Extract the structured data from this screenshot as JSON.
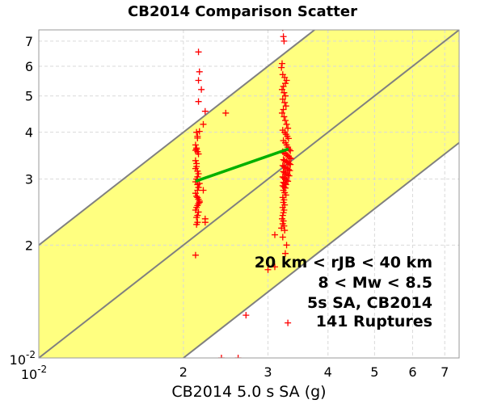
{
  "chart_data": {
    "type": "scatter",
    "title": "CB2014 Comparison Scatter",
    "xlabel": "CB2014 5.0 s SA (g)",
    "ylabel": "",
    "x_scale": "log",
    "y_scale": "log",
    "xlim": [
      0.01,
      0.075
    ],
    "ylim": [
      0.01,
      0.075
    ],
    "x_tick_labels": [
      {
        "value": 0.01,
        "base": "10",
        "exp": "-2"
      },
      {
        "value": 0.02,
        "label": "2"
      },
      {
        "value": 0.03,
        "label": "3"
      },
      {
        "value": 0.04,
        "label": "4"
      },
      {
        "value": 0.05,
        "label": "5"
      },
      {
        "value": 0.06,
        "label": "6"
      },
      {
        "value": 0.07,
        "label": "7"
      }
    ],
    "y_tick_labels": [
      {
        "value": 0.01,
        "base": "10",
        "exp": "-2"
      },
      {
        "value": 0.02,
        "label": "2"
      },
      {
        "value": 0.03,
        "label": "3"
      },
      {
        "value": 0.04,
        "label": "4"
      },
      {
        "value": 0.05,
        "label": "5"
      },
      {
        "value": 0.06,
        "label": "6"
      },
      {
        "value": 0.07,
        "label": "7"
      }
    ],
    "grid": true,
    "colors": {
      "band_fill": "#ffff80",
      "band_line": "#808080",
      "points": "#ff0000",
      "fit_line": "#00b000",
      "grid": "#d9d9d9"
    },
    "reference_lines": {
      "center": {
        "x": [
          0.01,
          0.075
        ],
        "y": [
          0.01,
          0.075
        ]
      },
      "upper": {
        "x": [
          0.01,
          0.0375
        ],
        "y": [
          0.02,
          0.075
        ]
      },
      "lower": {
        "x": [
          0.02,
          0.075
        ],
        "y": [
          0.01,
          0.0375
        ]
      }
    },
    "fit_line": {
      "x": [
        0.0212,
        0.0331
      ],
      "y": [
        0.0296,
        0.0361
      ]
    },
    "series": [
      {
        "x": [
          0.0215,
          0.0216,
          0.0215,
          0.0218,
          0.0222,
          0.022,
          0.0213,
          0.0214,
          0.0212,
          0.0213,
          0.0214,
          0.0215,
          0.0213,
          0.0212,
          0.0214,
          0.0215,
          0.0213,
          0.0212,
          0.0216,
          0.0214,
          0.0215,
          0.0214,
          0.0212,
          0.0213,
          0.0215,
          0.0216,
          0.0214,
          0.0213,
          0.0212,
          0.0215,
          0.0214,
          0.0213,
          0.022,
          0.0222,
          0.0215,
          0.0216,
          0.0214,
          0.0213,
          0.0212,
          0.0212,
          0.0213,
          0.0214,
          0.0215,
          0.0216,
          0.0214,
          0.0213,
          0.0222,
          0.0212,
          0.0215,
          0.0214
        ],
        "y": [
          0.0655,
          0.058,
          0.055,
          0.052,
          0.0455,
          0.042,
          0.04,
          0.039,
          0.037,
          0.036,
          0.0355,
          0.035,
          0.033,
          0.032,
          0.0315,
          0.031,
          0.03,
          0.0295,
          0.0292,
          0.029,
          0.0285,
          0.028,
          0.0275,
          0.027,
          0.0265,
          0.026,
          0.0255,
          0.0252,
          0.0248,
          0.0245,
          0.024,
          0.0237,
          0.028,
          0.0235,
          0.0483,
          0.0402,
          0.0386,
          0.0363,
          0.0358,
          0.0336,
          0.0324,
          0.0304,
          0.0285,
          0.0262,
          0.023,
          0.0227,
          0.023,
          0.0188,
          0.0258,
          0.0268
        ]
      },
      {
        "x": [
          0.0245,
          0.026,
          0.024,
          0.027,
          0.03,
          0.031,
          0.033
        ],
        "y": [
          0.045,
          0.01,
          0.01,
          0.013,
          0.0172,
          0.0175,
          0.0124
        ]
      },
      {
        "x": [
          0.0322,
          0.0323,
          0.0324,
          0.0321,
          0.032,
          0.0322,
          0.0325,
          0.0328,
          0.0326,
          0.0323,
          0.0321,
          0.0324,
          0.0326,
          0.0322,
          0.0325,
          0.0327,
          0.0323,
          0.0321,
          0.0324,
          0.0326,
          0.0328,
          0.033,
          0.0322,
          0.0325,
          0.0327,
          0.0329,
          0.0331,
          0.0323,
          0.0326,
          0.0328,
          0.033,
          0.0332,
          0.0334,
          0.0322,
          0.0324,
          0.0327,
          0.0329,
          0.0331,
          0.0333,
          0.0335,
          0.0323,
          0.0325,
          0.0328,
          0.033,
          0.0332,
          0.0334,
          0.0322,
          0.0324,
          0.0326,
          0.0329,
          0.0331,
          0.0333,
          0.0323,
          0.0325,
          0.0327,
          0.033,
          0.0332,
          0.0322,
          0.0324,
          0.0326,
          0.0328,
          0.033,
          0.0323,
          0.0325,
          0.0327,
          0.0322,
          0.0324,
          0.0326,
          0.0323,
          0.0325,
          0.0327,
          0.0322,
          0.0324,
          0.0323,
          0.0325,
          0.0322,
          0.0324,
          0.0323,
          0.0322,
          0.0321,
          0.0323,
          0.0322,
          0.0324,
          0.032,
          0.0325,
          0.031,
          0.0328,
          0.0322,
          0.0326
        ],
        "y": [
          0.076,
          0.072,
          0.07,
          0.061,
          0.0595,
          0.057,
          0.056,
          0.055,
          0.054,
          0.053,
          0.052,
          0.051,
          0.05,
          0.049,
          0.048,
          0.047,
          0.046,
          0.045,
          0.044,
          0.043,
          0.042,
          0.041,
          0.0405,
          0.04,
          0.0395,
          0.039,
          0.0385,
          0.038,
          0.0375,
          0.037,
          0.0365,
          0.036,
          0.0357,
          0.0355,
          0.0352,
          0.035,
          0.0347,
          0.0345,
          0.0342,
          0.034,
          0.0338,
          0.0336,
          0.0334,
          0.0332,
          0.033,
          0.0328,
          0.0326,
          0.0324,
          0.0322,
          0.032,
          0.0318,
          0.0316,
          0.0314,
          0.0312,
          0.031,
          0.0308,
          0.0306,
          0.0304,
          0.0302,
          0.03,
          0.0298,
          0.0296,
          0.0294,
          0.0292,
          0.029,
          0.0288,
          0.0286,
          0.0284,
          0.028,
          0.0276,
          0.0272,
          0.0268,
          0.0264,
          0.026,
          0.0256,
          0.0252,
          0.0248,
          0.0244,
          0.024,
          0.0235,
          0.0232,
          0.0228,
          0.0225,
          0.0222,
          0.0219,
          0.0213,
          0.02,
          0.021,
          0.019
        ]
      }
    ],
    "annotations": [
      "20 km < rJB < 40 km",
      "8 < Mw < 8.5",
      "5s SA, CB2014",
      "141 Ruptures"
    ]
  }
}
